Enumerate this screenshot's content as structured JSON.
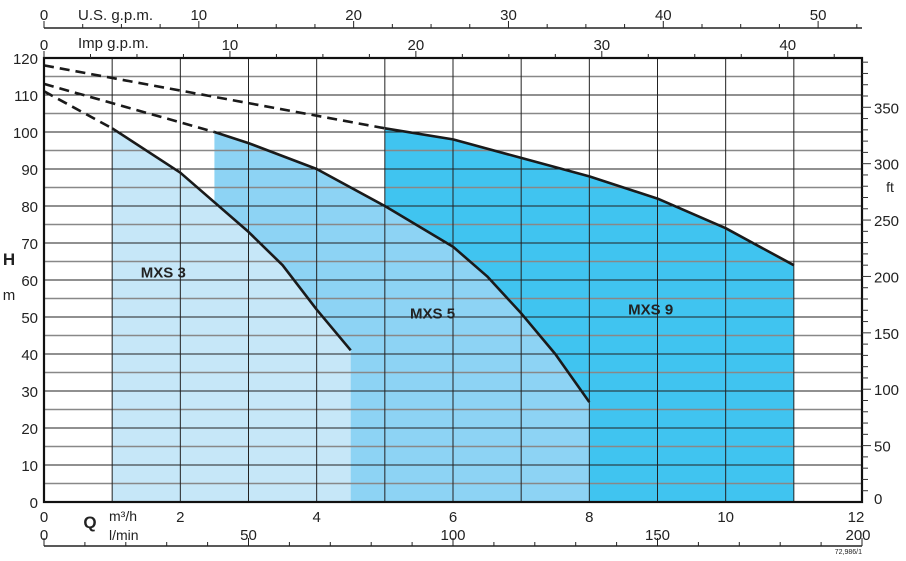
{
  "chart_data": {
    "type": "area",
    "xlabel": "Q",
    "x_unit_primary": "m³/h",
    "x_unit_secondary": "l/min",
    "top_axis_1": "U.S. g.p.m.",
    "top_axis_2": "Imp g.p.m.",
    "ylabel": "H",
    "y_unit": "m",
    "y2_unit": "ft",
    "xlim": [
      0,
      12
    ],
    "ylim": [
      0,
      120
    ],
    "y2lim_ft": [
      0,
      393.7
    ],
    "x_ticks": [
      0,
      2,
      4,
      6,
      8,
      10,
      12
    ],
    "lmin_ticks": [
      0,
      50,
      100,
      150,
      200
    ],
    "usgpm_ticks": [
      0,
      10,
      20,
      30,
      40,
      50
    ],
    "impgpm_ticks": [
      0,
      10,
      20,
      30,
      40
    ],
    "y_ticks": [
      0,
      10,
      20,
      30,
      40,
      50,
      60,
      70,
      80,
      90,
      100,
      110,
      120
    ],
    "ft_ticks": [
      0,
      50,
      100,
      150,
      200,
      250,
      300,
      350
    ],
    "grid": true,
    "reference": "72,986/1",
    "series": [
      {
        "name": "MXS 3",
        "color": "#c6e7f8",
        "dashed": [
          [
            0,
            111
          ],
          [
            1,
            101
          ]
        ],
        "solid": [
          [
            1,
            101
          ],
          [
            2,
            89
          ],
          [
            3,
            73
          ],
          [
            3.5,
            64
          ],
          [
            4,
            52
          ],
          [
            4.5,
            41
          ]
        ],
        "label_at": [
          1.75,
          62
        ]
      },
      {
        "name": "MXS 5",
        "color": "#8dd3f4",
        "dashed": [
          [
            0,
            113
          ],
          [
            2.5,
            100
          ]
        ],
        "solid": [
          [
            2.5,
            100
          ],
          [
            3,
            97
          ],
          [
            4,
            90
          ],
          [
            5,
            80
          ],
          [
            6,
            69
          ],
          [
            6.5,
            61
          ],
          [
            7,
            51
          ],
          [
            7.5,
            40
          ],
          [
            8,
            27
          ]
        ],
        "label_at": [
          5.7,
          51
        ]
      },
      {
        "name": "MXS 9",
        "color": "#40c4f0",
        "dashed": [
          [
            0,
            118
          ],
          [
            5,
            101
          ]
        ],
        "solid": [
          [
            5,
            101
          ],
          [
            6,
            98
          ],
          [
            7,
            93
          ],
          [
            8,
            88
          ],
          [
            9,
            82
          ],
          [
            10,
            74
          ],
          [
            11,
            64
          ]
        ],
        "label_at": [
          8.9,
          52
        ]
      }
    ]
  }
}
